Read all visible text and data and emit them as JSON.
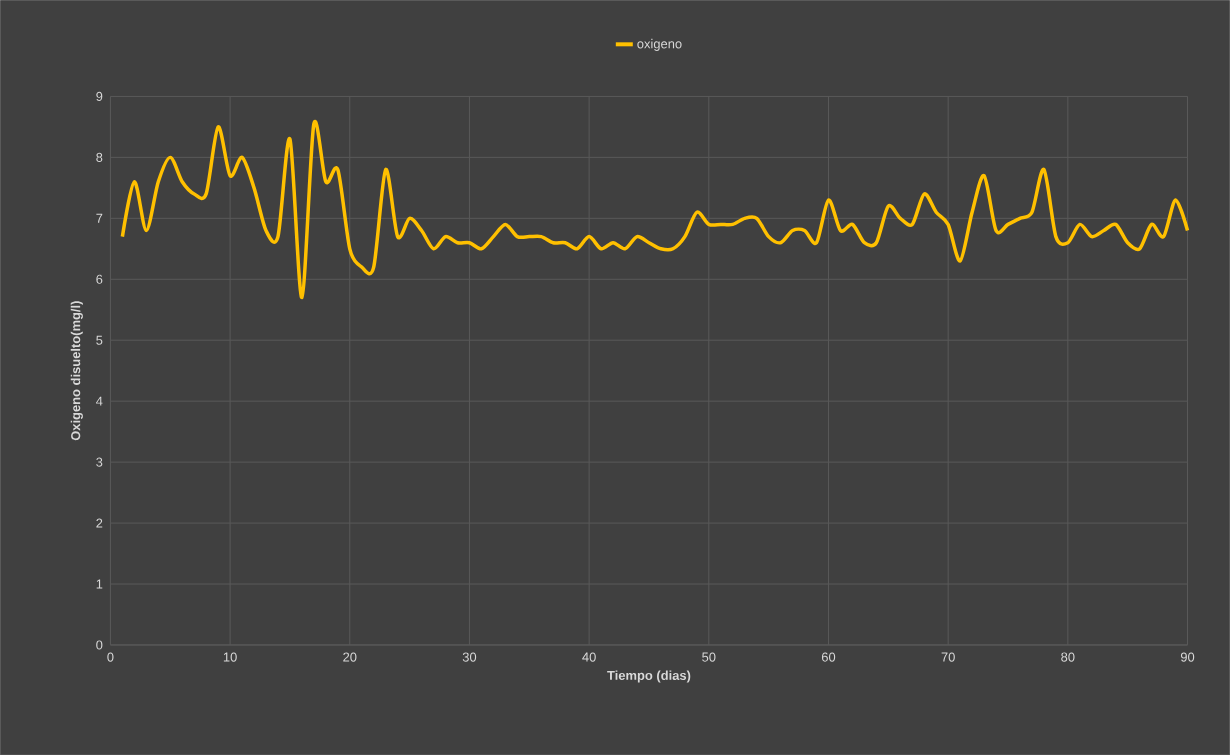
{
  "chart_data": {
    "type": "line",
    "xlabel": "Tiempo (dias)",
    "ylabel": "Oxigeno disuelto(mg/l)",
    "x": [
      1,
      2,
      3,
      4,
      5,
      6,
      7,
      8,
      9,
      10,
      11,
      12,
      13,
      14,
      15,
      16,
      17,
      18,
      19,
      20,
      21,
      22,
      23,
      24,
      25,
      26,
      27,
      28,
      29,
      30,
      31,
      32,
      33,
      34,
      35,
      36,
      37,
      38,
      39,
      40,
      41,
      42,
      43,
      44,
      45,
      46,
      47,
      48,
      49,
      50,
      51,
      52,
      53,
      54,
      55,
      56,
      57,
      58,
      59,
      60,
      61,
      62,
      63,
      64,
      65,
      66,
      67,
      68,
      69,
      70,
      71,
      72,
      73,
      74,
      75,
      76,
      77,
      78,
      79,
      80,
      81,
      82,
      83,
      84,
      85,
      86,
      87,
      88,
      89,
      90
    ],
    "series": [
      {
        "name": "oxigeno",
        "color": "#ffc000",
        "values": [
          6.7,
          7.6,
          6.8,
          7.6,
          8.0,
          7.6,
          7.4,
          7.4,
          8.5,
          7.7,
          8.0,
          7.5,
          6.8,
          6.7,
          8.3,
          5.7,
          8.55,
          7.6,
          7.8,
          6.5,
          6.2,
          6.2,
          7.8,
          6.7,
          7.0,
          6.8,
          6.5,
          6.7,
          6.6,
          6.6,
          6.5,
          6.7,
          6.9,
          6.7,
          6.7,
          6.7,
          6.6,
          6.6,
          6.5,
          6.7,
          6.5,
          6.6,
          6.5,
          6.7,
          6.6,
          6.5,
          6.5,
          6.7,
          7.1,
          6.9,
          6.9,
          6.9,
          7.0,
          7.0,
          6.7,
          6.6,
          6.8,
          6.8,
          6.6,
          7.3,
          6.8,
          6.9,
          6.6,
          6.6,
          7.2,
          7.0,
          6.9,
          7.4,
          7.1,
          6.9,
          6.3,
          7.1,
          7.7,
          6.8,
          6.9,
          7.0,
          7.1,
          7.8,
          6.7,
          6.6,
          6.9,
          6.7,
          6.8,
          6.9,
          6.6,
          6.5,
          6.9,
          6.7,
          7.3,
          6.8
        ]
      }
    ],
    "xlim": [
      0,
      90
    ],
    "xticks": [
      0,
      10,
      20,
      30,
      40,
      50,
      60,
      70,
      80,
      90
    ],
    "ylim": [
      0,
      9
    ],
    "yticks": [
      0,
      1,
      2,
      3,
      4,
      5,
      6,
      7,
      8,
      9
    ],
    "grid": true,
    "legend": "top",
    "marker": "none",
    "line_style": "solid"
  }
}
